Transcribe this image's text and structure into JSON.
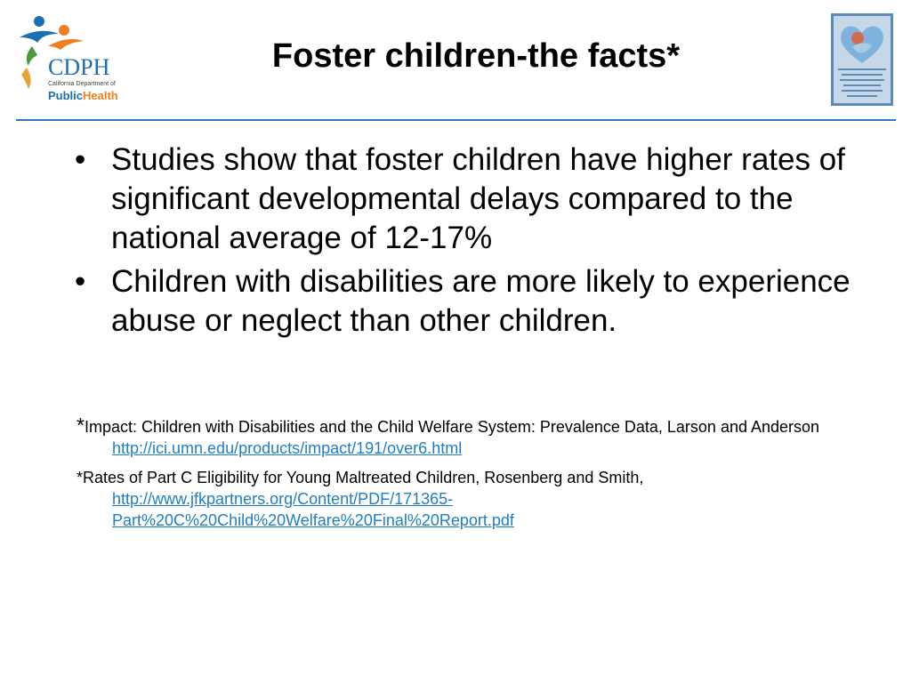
{
  "header": {
    "title": "Foster children-the facts*",
    "left_logo": {
      "icon": "cdph-logo-icon",
      "abbr": "CDPH",
      "org_small": "California Department of",
      "name_public": "Public",
      "name_health": "Health",
      "colors": {
        "blue": "#1b6fb5",
        "orange": "#f07f22",
        "green": "#4b9a3b",
        "gold": "#e7a33a"
      }
    },
    "right_logo": {
      "icon": "maternal-child-adolescent-health-logo-icon",
      "colors": {
        "frame": "#5d8bb8",
        "heart": "#7fb2dc",
        "bg": "#c6d8e8"
      }
    }
  },
  "divider_color": "#2f79c6",
  "bullets": [
    "Studies show that foster children have higher rates of significant developmental delays compared to the national average of 12-17%",
    "Children with disabilities are more likely to experience abuse or neglect than other children."
  ],
  "bullet_char": "•",
  "references": [
    {
      "star": "*",
      "text": "Impact: Children with Disabilities and the Child Welfare System: Prevalence Data, Larson and Anderson ",
      "link": "http://ici.umn.edu/products/impact/191/over6.html"
    },
    {
      "star": "*",
      "text": "Rates of Part C Eligibility for Young Maltreated Children, Rosenberg and Smith, ",
      "link_line1": "http://www.jfkpartners.org/Content/PDF/171365-",
      "link_line2": "Part%20C%20Child%20Welfare%20Final%20Report.pdf"
    }
  ],
  "link_color": "#1f7fc4"
}
